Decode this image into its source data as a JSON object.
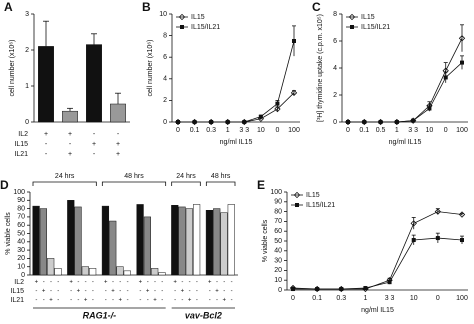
{
  "chart_data": [
    {
      "type": "bar",
      "panel": "A",
      "ylabel": "cell number (x10⁶)",
      "values": [
        2.1,
        0.3,
        2.15,
        0.5
      ],
      "errors": [
        0.7,
        0.08,
        0.3,
        0.3
      ],
      "colors": [
        "#111111",
        "#999999",
        "#111111",
        "#999999"
      ],
      "ylim": [
        0,
        3
      ],
      "yticks": [
        0,
        1,
        2,
        3
      ],
      "table": [
        {
          "label": "IL2",
          "signs": [
            "+",
            "+",
            "-",
            "-"
          ]
        },
        {
          "label": "IL15",
          "signs": [
            "-",
            "-",
            "+",
            "+"
          ]
        },
        {
          "label": "IL21",
          "signs": [
            "-",
            "+",
            "-",
            "+"
          ]
        }
      ]
    },
    {
      "type": "line",
      "panel": "B",
      "ylabel": "cell number (x10⁶)",
      "xlabel": "ng/ml IL15",
      "categories": [
        "0",
        "0.1",
        "0.3",
        "1",
        "3 3",
        "10",
        "0",
        "100"
      ],
      "series": [
        {
          "name": "IL15",
          "marker": "diamond",
          "color": "#111111",
          "values": [
            0,
            0,
            0,
            0,
            0,
            0.3,
            1.2,
            2.7
          ],
          "errors": [
            0,
            0,
            0,
            0,
            0,
            0.1,
            0.2,
            0.2
          ]
        },
        {
          "name": "IL15/IL21",
          "marker": "square",
          "color": "#111111",
          "values": [
            0,
            0,
            0,
            0,
            0,
            0.5,
            1.7,
            7.5
          ],
          "errors": [
            0,
            0,
            0,
            0,
            0,
            0.1,
            0.3,
            1.4
          ]
        }
      ],
      "ylim": [
        0,
        10
      ],
      "yticks": [
        0,
        2,
        4,
        6,
        8,
        10
      ],
      "legend": "upper left"
    },
    {
      "type": "line",
      "panel": "C",
      "ylabel": "[³H] thymidine uptake (c.p.m. x10⁵)",
      "xlabel": "ng/ml IL15",
      "categories": [
        "0",
        "0.1",
        "0.5",
        "1",
        "3 3",
        "10",
        "0",
        "100"
      ],
      "series": [
        {
          "name": "IL15",
          "marker": "diamond",
          "color": "#111111",
          "values": [
            0,
            0,
            0,
            0,
            0.1,
            1.2,
            3.8,
            6.2
          ],
          "errors": [
            0,
            0,
            0,
            0,
            0.05,
            0.3,
            0.6,
            1.0
          ]
        },
        {
          "name": "IL15/IL21",
          "marker": "square",
          "color": "#111111",
          "values": [
            0,
            0,
            0,
            0,
            0.1,
            1.0,
            3.3,
            4.4
          ],
          "errors": [
            0,
            0,
            0,
            0,
            0.05,
            0.2,
            0.4,
            0.5
          ]
        }
      ],
      "ylim": [
        0,
        8
      ],
      "yticks": [
        0,
        2,
        4,
        6,
        8
      ],
      "legend": "upper left"
    },
    {
      "type": "grouped_bar",
      "panel": "D",
      "ylabel": "% viable cells",
      "series": [
        {
          "color": "#111111",
          "values": [
            83,
            90,
            83,
            85,
            84,
            78
          ]
        },
        {
          "color": "#888888",
          "values": [
            80,
            82,
            65,
            70,
            82,
            80
          ]
        },
        {
          "color": "#cccccc",
          "values": [
            20,
            10,
            10,
            8,
            80,
            75
          ]
        },
        {
          "color": "#ffffff",
          "values": [
            8,
            8,
            5,
            3,
            85,
            85
          ]
        }
      ],
      "ylim": [
        0,
        100
      ],
      "yticks": [
        0,
        10,
        20,
        30,
        40,
        50,
        60,
        70,
        80,
        90,
        100
      ],
      "groups": [
        {
          "label": "24 hrs",
          "size": 2
        },
        {
          "label": "48 hrs",
          "size": 2
        },
        {
          "label": "24 hrs",
          "size": 1
        },
        {
          "label": "48 hrs",
          "size": 1
        }
      ],
      "sections": [
        {
          "label": "RAG1-/-",
          "size": 4
        },
        {
          "label": "vav-Bcl2",
          "size": 2
        }
      ],
      "table": [
        {
          "label": "IL2",
          "signs": [
            "+",
            "-",
            "-",
            "-",
            "+",
            "-",
            "-",
            "-",
            "+",
            "-",
            "-",
            "-",
            "+",
            "-",
            "-",
            "-",
            "+",
            "-",
            "-",
            "-",
            "+",
            "-",
            "-",
            "-"
          ]
        },
        {
          "label": "IL15",
          "signs": [
            "-",
            "+",
            "-",
            "-",
            "-",
            "+",
            "-",
            "-",
            "-",
            "+",
            "-",
            "-",
            "-",
            "+",
            "-",
            "-",
            "-",
            "+",
            "-",
            "-",
            "-",
            "+",
            "-",
            "-"
          ]
        },
        {
          "label": "IL21",
          "signs": [
            "-",
            "-",
            "+",
            "-",
            "-",
            "-",
            "+",
            "-",
            "-",
            "-",
            "+",
            "-",
            "-",
            "-",
            "+",
            "-",
            "-",
            "-",
            "+",
            "-",
            "-",
            "-",
            "+",
            "-"
          ]
        }
      ]
    },
    {
      "type": "line",
      "panel": "E",
      "ylabel": "% viable cells",
      "xlabel": "ng/ml IL15",
      "categories": [
        "0",
        "0.1",
        "0.3",
        "1",
        "3 3",
        "10",
        "0",
        "100"
      ],
      "series": [
        {
          "name": "IL15",
          "marker": "diamond",
          "color": "#111111",
          "values": [
            2,
            1,
            1,
            1,
            10,
            68,
            80,
            77
          ],
          "errors": [
            1,
            1,
            1,
            1,
            2,
            6,
            3,
            1
          ]
        },
        {
          "name": "IL15/IL21",
          "marker": "square",
          "color": "#111111",
          "values": [
            1,
            1,
            1,
            2,
            8,
            51,
            53,
            51
          ],
          "errors": [
            1,
            1,
            1,
            1,
            2,
            5,
            5,
            4
          ]
        }
      ],
      "ylim": [
        0,
        100
      ],
      "yticks": [
        0,
        10,
        20,
        30,
        40,
        50,
        60,
        70,
        80,
        90,
        100
      ],
      "legend": "upper left"
    }
  ]
}
